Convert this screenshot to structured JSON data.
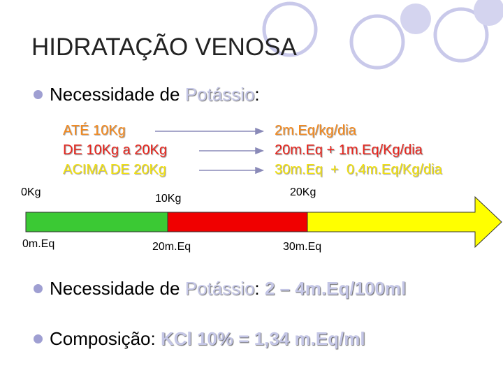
{
  "title": "HIDRATAÇÃO VENOSA",
  "bullet1": {
    "text": "Necessidade de ",
    "highlight": "Potássio",
    "end": ":"
  },
  "rows": [
    {
      "range": "ATÉ 10Kg",
      "dose": "2m.Eq/kg/dia"
    },
    {
      "range": "DE 10Kg a 20Kg",
      "dose": "20m.Eq + 1m.Eq/Kg/dia"
    },
    {
      "range": "ACIMA DE 20Kg",
      "dose": "30m.Eq  +  0,4m.Eq/Kg/dia"
    }
  ],
  "scale_top": [
    "0Kg",
    "10Kg",
    "20Kg"
  ],
  "scale_bottom": [
    "0m.Eq",
    "20m.Eq",
    "30m.Eq"
  ],
  "bullet2": {
    "text": "Necessidade de ",
    "highlight": "Potássio",
    "mid": ": ",
    "value": "2 – 4m.Eq/100ml"
  },
  "bullet3": {
    "text": "Composição: ",
    "value": "KCl 10% = 1,34 m.Eq/ml"
  }
}
